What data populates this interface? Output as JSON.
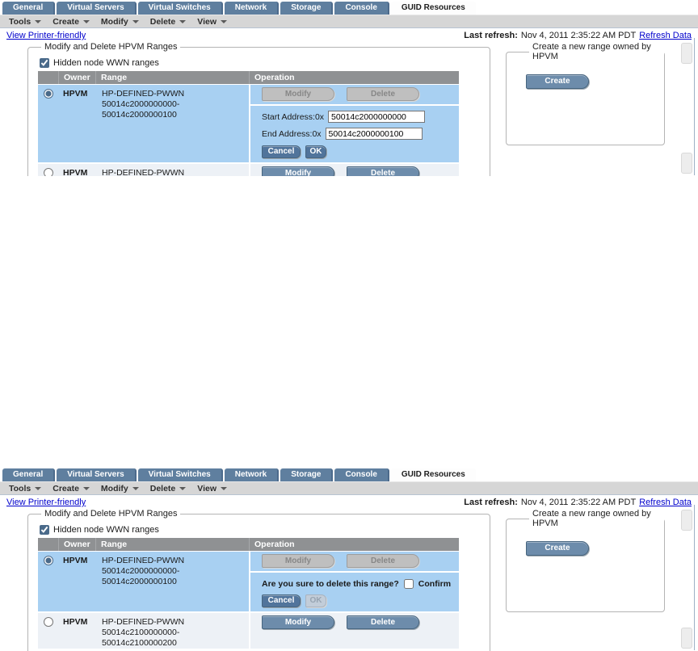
{
  "colors": {
    "tab_blue": "#5f7f9f",
    "menu_gray": "#d6d6d6",
    "table_header_gray": "#8f9193",
    "selected_row_blue": "#a8d0f2",
    "alt_row": "#edf1f6",
    "button_blue": "#6d8cab",
    "button_dark_blue": "#51749b",
    "disabled_gray": "#bfbfbf",
    "link_blue": "#0000cc"
  },
  "tabs": [
    "General",
    "Virtual Servers",
    "Virtual Switches",
    "Network",
    "Storage",
    "Console",
    "GUID Resources"
  ],
  "active_tab": "GUID Resources",
  "menus": [
    "Tools",
    "Create",
    "Modify",
    "Delete",
    "View"
  ],
  "header": {
    "printer_link": "View Printer-friendly",
    "last_refresh_label": "Last refresh:",
    "last_refresh_value": "Nov 4, 2011 2:35:22 AM PDT",
    "refresh_link": "Refresh Data"
  },
  "ranges": {
    "legend": "Modify and Delete HPVM Ranges",
    "hidden_checkbox_label": "Hidden node WWN ranges",
    "columns": {
      "owner": "Owner",
      "range": "Range",
      "operation": "Operation"
    },
    "row1": {
      "owner": "HPVM",
      "range_line1": "HP-DEFINED-PWWN",
      "range_line2": "50014c2000000000-50014c2000000100",
      "modify_label": "Modify",
      "delete_label": "Delete"
    },
    "row2": {
      "owner": "HPVM",
      "range_line1": "HP-DEFINED-PWWN",
      "range_line2": "50014c2100000000-50014c2100000200",
      "modify_label": "Modify",
      "delete_label": "Delete"
    }
  },
  "edit_form": {
    "start_label": "Start Address:0x",
    "start_value": "50014c2000000000",
    "end_label": "End Address:0x",
    "end_value": "50014c2000000100",
    "cancel_label": "Cancel",
    "ok_label": "OK"
  },
  "confirm_form": {
    "question": "Are you sure to delete this range?",
    "confirm_label": "Confirm",
    "cancel_label": "Cancel",
    "ok_label": "OK"
  },
  "create": {
    "legend": "Create a new range owned by HPVM",
    "button_label": "Create"
  }
}
